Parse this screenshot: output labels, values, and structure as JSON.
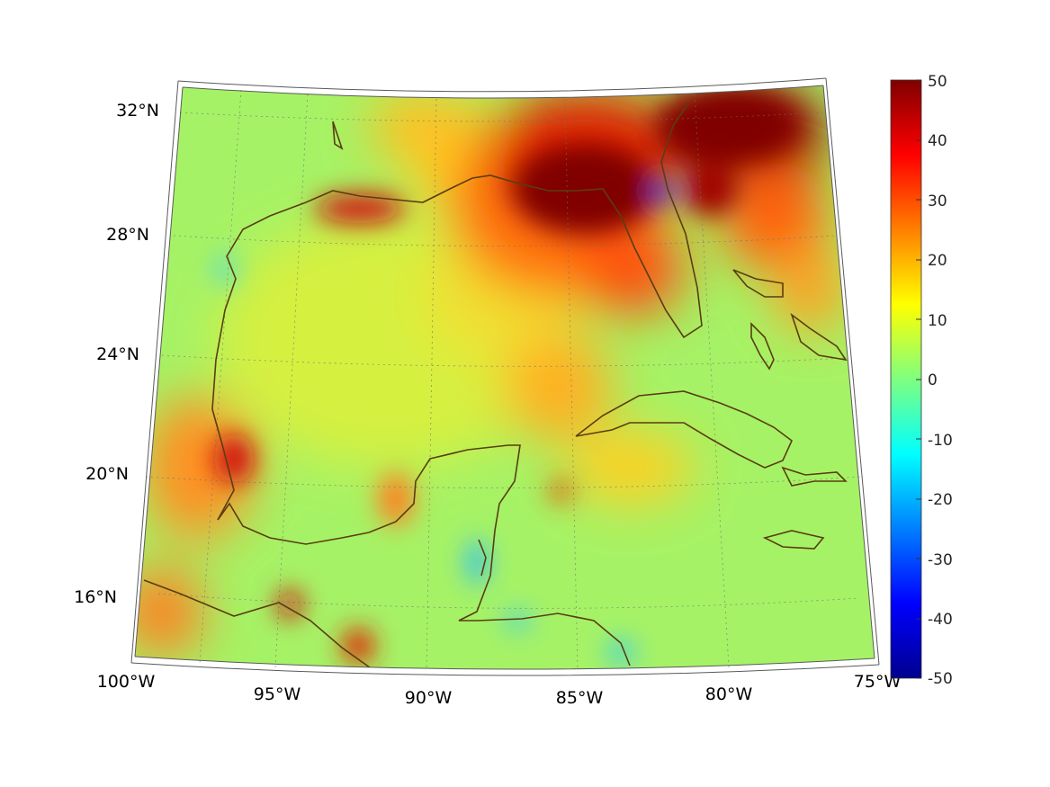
{
  "map": {
    "lon_labels": [
      "100°W",
      "95°W",
      "90°W",
      "85°W",
      "80°W",
      "75°W"
    ],
    "lat_labels": [
      "16°N",
      "20°N",
      "24°N",
      "28°N",
      "32°N"
    ],
    "lon_range": [
      -100,
      -75
    ],
    "lat_range": [
      14,
      33
    ],
    "graticule": "dotted",
    "coastline_color": "#5a3d12",
    "colormap": "jet"
  },
  "colorbar": {
    "ticks": [
      "50",
      "40",
      "30",
      "20",
      "10",
      "0",
      "-10",
      "-20",
      "-30",
      "-40",
      "-50"
    ],
    "range": [
      -50,
      50
    ],
    "colors": [
      "#00008f",
      "#0000ff",
      "#00ffff",
      "#7fff7f",
      "#ffff00",
      "#ff0000",
      "#800000"
    ]
  }
}
